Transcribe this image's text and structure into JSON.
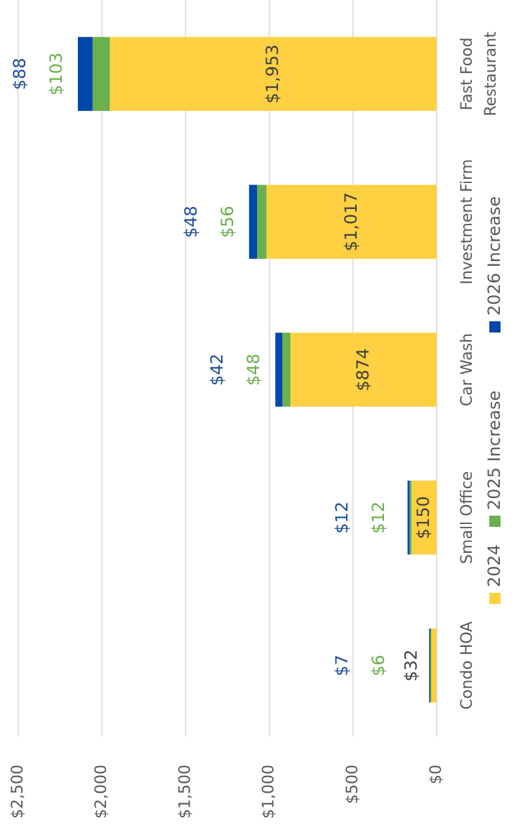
{
  "chart_data": {
    "type": "stacked_bar",
    "categories": [
      "Condo HOA",
      "Small Office",
      "Car Wash",
      "Investment Firm",
      "Fast Food Restaurant"
    ],
    "series": [
      {
        "name": "2024",
        "color": "#ffd042",
        "label_color": "#404040",
        "values": [
          32,
          150,
          874,
          1017,
          1953
        ],
        "value_labels": [
          "$32",
          "$150",
          "$874",
          "$1,017",
          "$1,953"
        ]
      },
      {
        "name": "2025 Increase",
        "color": "#6ab04c",
        "label_color": "#6ab04c",
        "values": [
          6,
          12,
          48,
          56,
          103
        ],
        "value_labels": [
          "$6",
          "$12",
          "$48",
          "$56",
          "$103"
        ]
      },
      {
        "name": "2026 Increase",
        "color": "#0047ab",
        "label_color": "#1f4e9e",
        "values": [
          7,
          12,
          42,
          48,
          88
        ],
        "value_labels": [
          "$7",
          "$12",
          "$42",
          "$48",
          "$88"
        ]
      }
    ],
    "ylim": [
      0,
      2500
    ],
    "yticks": [
      {
        "value": 0,
        "label": "$0"
      },
      {
        "value": 500,
        "label": "$500"
      },
      {
        "value": 1000,
        "label": "$1,000"
      },
      {
        "value": 1500,
        "label": "$1,500"
      },
      {
        "value": 2000,
        "label": "$2,000"
      },
      {
        "value": 2500,
        "label": "$2,500"
      }
    ],
    "grid": true,
    "legend": "bottom"
  }
}
